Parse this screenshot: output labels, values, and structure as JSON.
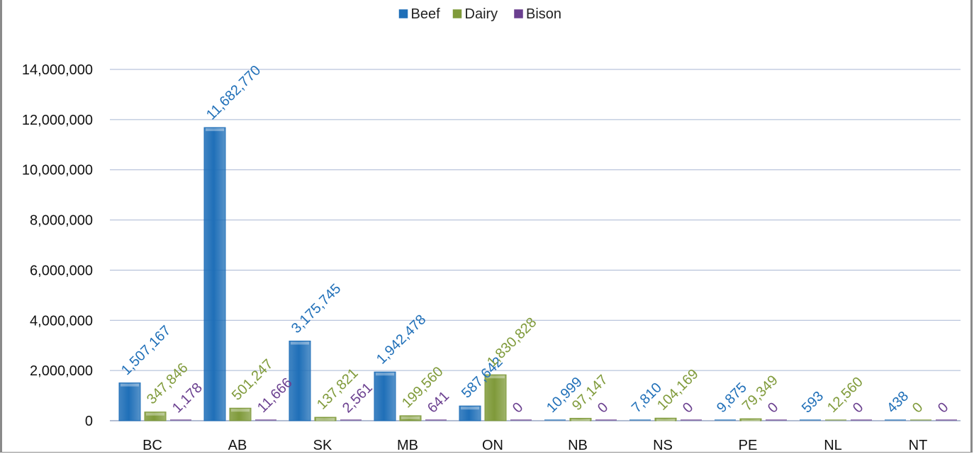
{
  "chart_data": {
    "type": "bar",
    "categories": [
      "BC",
      "AB",
      "SK",
      "MB",
      "ON",
      "NB",
      "NS",
      "PE",
      "NL",
      "NT"
    ],
    "series": [
      {
        "name": "Beef",
        "color": "#1f6fb8",
        "label_color": "#1f6fb8",
        "values": [
          1507167,
          11682770,
          3175745,
          1942478,
          587642,
          10999,
          7810,
          9875,
          593,
          438
        ],
        "labels": [
          "1,507,167",
          "11,682,770",
          "3,175,745",
          "1,942,478",
          "587,642",
          "10,999",
          "7,810",
          "9,875",
          "593",
          "438"
        ]
      },
      {
        "name": "Dairy",
        "color": "#7f9a3a",
        "label_color": "#7f9a3a",
        "values": [
          347846,
          501247,
          137821,
          199560,
          1830828,
          97147,
          104169,
          79349,
          12560,
          0
        ],
        "labels": [
          "347,846",
          "501,247",
          "137,821",
          "199,560",
          "1,830,828",
          "97,147",
          "104,169",
          "79,349",
          "12,560",
          "0"
        ]
      },
      {
        "name": "Bison",
        "color": "#6a3f8f",
        "label_color": "#6a3f8f",
        "values": [
          1178,
          11666,
          2561,
          641,
          0,
          0,
          0,
          0,
          0,
          0
        ],
        "labels": [
          "1,178",
          "11,666",
          "2,561",
          "641",
          "0",
          "0",
          "0",
          "0",
          "0",
          "0"
        ]
      }
    ],
    "ylim": [
      0,
      14000000
    ],
    "y_ticks": [
      "0",
      "2,000,000",
      "4,000,000",
      "6,000,000",
      "8,000,000",
      "10,000,000",
      "12,000,000",
      "14,000,000"
    ],
    "grid": true,
    "legend_position": "top-center",
    "xlabel": "",
    "ylabel": ""
  }
}
